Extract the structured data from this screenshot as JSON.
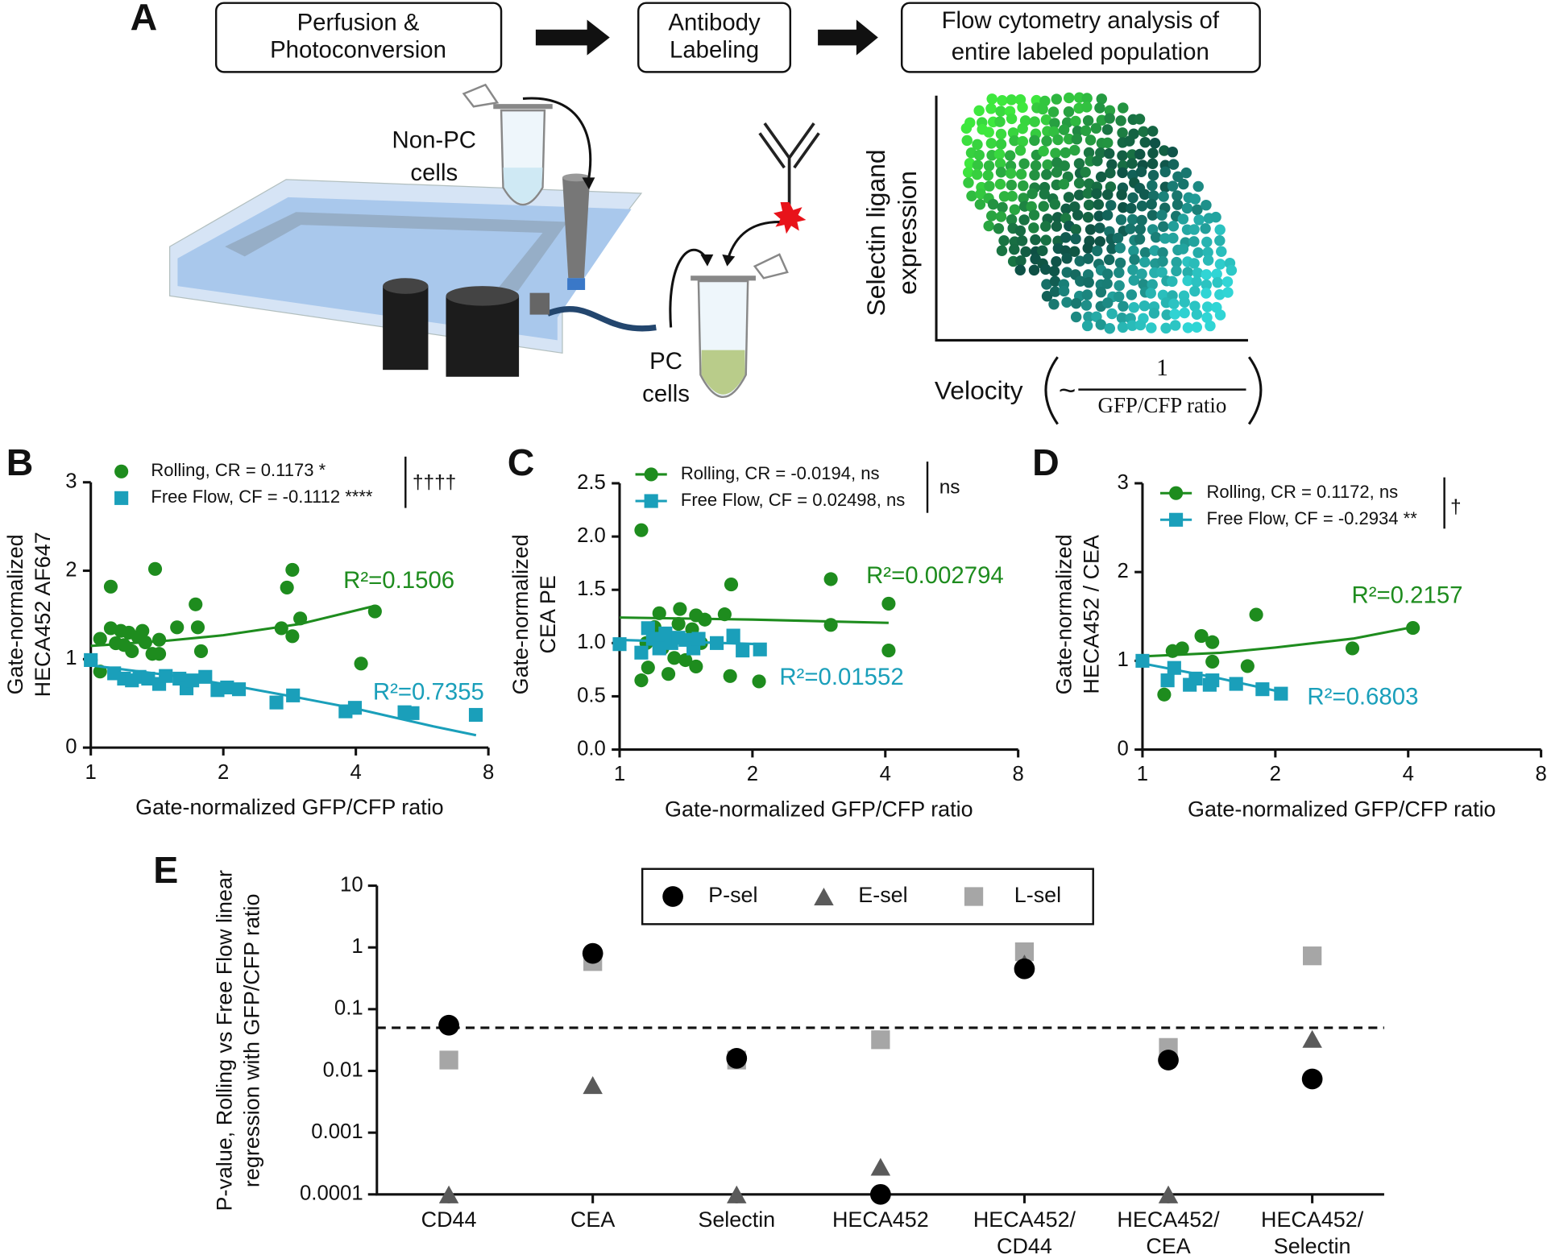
{
  "panel_a": {
    "label": "A",
    "steps": [
      "Perfusion &\nPhotoconversion",
      "Antibody\nLabeling",
      "Flow cytometry analysis of\nentire labeled population"
    ],
    "non_pc": "Non-PC\ncells",
    "pc": "PC\ncells",
    "ylabel": "Selectin ligand\nexpression",
    "xlabel": "Velocity",
    "tilde": "~",
    "numerator": "1",
    "denominator": "GFP/CFP ratio"
  },
  "chart_data": [
    {
      "type": "scatter",
      "panel": "B",
      "xlabel": "Gate-normalized GFP/CFP ratio",
      "ylabel": "Gate-normalized\nHECA452 AF647",
      "log_x": true,
      "xlim": [
        1,
        8
      ],
      "xticks": [
        1,
        2,
        4,
        8
      ],
      "ylim": [
        0,
        3
      ],
      "yticks": [
        0,
        1,
        2,
        3
      ],
      "legend_lines": false,
      "annotation": "††††",
      "series": [
        {
          "name": "Rolling, CR = 0.1173 *",
          "marker": "circle",
          "color": "#1e8c1e",
          "r2_label": "R²=0.1506",
          "x": [
            1,
            1.05,
            1.05,
            1.11,
            1.11,
            1.14,
            1.17,
            1.19,
            1.22,
            1.24,
            1.28,
            1.31,
            1.33,
            1.38,
            1.4,
            1.43,
            1.43,
            1.57,
            1.73,
            1.75,
            1.78,
            2.71,
            2.79,
            2.87,
            2.87,
            2.99,
            4.11,
            4.42
          ],
          "values": [
            0.99,
            1.23,
            0.86,
            1.82,
            1.35,
            1.18,
            1.32,
            1.16,
            1.3,
            1.09,
            1.25,
            1.32,
            1.19,
            1.06,
            2.02,
            1.22,
            1.06,
            1.36,
            1.62,
            1.36,
            1.09,
            1.35,
            1.81,
            2.01,
            1.26,
            1.46,
            0.95,
            1.54
          ],
          "fit": {
            "x": [
              1,
              1.5,
              2,
              3,
              4.4
            ],
            "values": [
              1.15,
              1.21,
              1.27,
              1.4,
              1.6
            ]
          }
        },
        {
          "name": "Free Flow, CF = -0.1112 ****",
          "marker": "square",
          "color": "#1a9fba",
          "r2_label": "R²=0.7355",
          "x": [
            1,
            1.13,
            1.19,
            1.24,
            1.29,
            1.35,
            1.43,
            1.48,
            1.59,
            1.65,
            1.7,
            1.82,
            1.94,
            2.04,
            2.17,
            2.64,
            2.88,
            3.79,
            3.98,
            5.16,
            5.38,
            7.49
          ],
          "values": [
            0.99,
            0.84,
            0.78,
            0.76,
            0.8,
            0.78,
            0.72,
            0.81,
            0.78,
            0.67,
            0.76,
            0.8,
            0.65,
            0.68,
            0.66,
            0.51,
            0.59,
            0.41,
            0.45,
            0.4,
            0.39,
            0.37
          ],
          "fit": {
            "x": [
              1,
              1.5,
              2,
              3,
              4,
              5,
              6,
              7.5
            ],
            "values": [
              0.93,
              0.82,
              0.72,
              0.56,
              0.44,
              0.33,
              0.24,
              0.14
            ]
          }
        }
      ]
    },
    {
      "type": "scatter",
      "panel": "C",
      "xlabel": "Gate-normalized GFP/CFP ratio",
      "ylabel": "Gate-normalized\nCEA PE",
      "log_x": true,
      "xlim": [
        1,
        8
      ],
      "xticks": [
        1,
        2,
        4,
        8
      ],
      "ylim": [
        0,
        2.5
      ],
      "yticks": [
        {
          "value": 0,
          "label": "0.0"
        },
        0.5,
        {
          "value": 1,
          "label": "1.0"
        },
        1.5,
        {
          "value": 2,
          "label": "2.0"
        },
        2.5
      ],
      "legend_lines": true,
      "annotation": "ns",
      "series": [
        {
          "name": "Rolling, CR = -0.0194, ns",
          "marker": "circle",
          "color": "#1e8c1e",
          "r2_label": "R²=0.002794",
          "x": [
            1,
            1.12,
            1.12,
            1.15,
            1.16,
            1.2,
            1.23,
            1.25,
            1.29,
            1.33,
            1.36,
            1.37,
            1.41,
            1.46,
            1.49,
            1.49,
            1.53,
            1.56,
            1.73,
            1.78,
            1.79,
            2.07,
            3.01,
            3.01,
            4.07,
            4.07
          ],
          "values": [
            0.99,
            2.06,
            0.65,
            1,
            0.77,
            1.15,
            1.28,
            0.95,
            0.71,
            0.86,
            1.18,
            1.32,
            0.84,
            1.13,
            0.78,
            1.26,
            1,
            1.22,
            1.27,
            0.69,
            1.55,
            0.64,
            1.6,
            1.17,
            1.37,
            0.93
          ],
          "fit": {
            "x": [
              1,
              2,
              4.07
            ],
            "values": [
              1.24,
              1.22,
              1.19
            ]
          }
        },
        {
          "name": "Free Flow, CF = 0.02498, ns",
          "marker": "square",
          "color": "#1a9fba",
          "r2_label": "R²=0.01552",
          "x": [
            1,
            1.12,
            1.16,
            1.19,
            1.23,
            1.27,
            1.31,
            1.36,
            1.41,
            1.47,
            1.51,
            1.66,
            1.81,
            1.9,
            2.08
          ],
          "values": [
            0.99,
            0.91,
            1.14,
            1.04,
            0.95,
            1.09,
            1,
            1.05,
            1.03,
            0.95,
            1.04,
            1,
            1.07,
            0.93,
            0.94
          ],
          "fit": {
            "x": [
              1,
              2.08
            ],
            "values": [
              1.03,
              0.99
            ]
          }
        }
      ]
    },
    {
      "type": "scatter",
      "panel": "D",
      "xlabel": "Gate-normalized GFP/CFP ratio",
      "ylabel": "Gate-normalized\nHECA452 / CEA",
      "log_x": true,
      "xlim": [
        1,
        8
      ],
      "xticks": [
        1,
        2,
        4,
        8
      ],
      "ylim": [
        0,
        3
      ],
      "yticks": [
        0,
        1,
        2,
        3
      ],
      "legend_lines": true,
      "annotation": "†",
      "series": [
        {
          "name": "Rolling, CR = 0.1172, ns",
          "marker": "circle",
          "color": "#1e8c1e",
          "r2_label": "R²=0.2157",
          "x": [
            1,
            1.12,
            1.17,
            1.23,
            1.36,
            1.44,
            1.44,
            1.73,
            1.81,
            2.99,
            4.1
          ],
          "values": [
            1,
            0.62,
            1.11,
            1.14,
            1.28,
            0.99,
            1.21,
            0.94,
            1.52,
            1.14,
            1.37
          ],
          "fit": {
            "x": [
              1,
              1.5,
              2,
              3,
              4.1
            ],
            "values": [
              1.05,
              1.09,
              1.15,
              1.25,
              1.38
            ]
          }
        },
        {
          "name": "Free Flow, CF = -0.2934 **",
          "marker": "square",
          "color": "#1a9fba",
          "r2_label": "R²=0.6803",
          "x": [
            1,
            1.14,
            1.18,
            1.28,
            1.32,
            1.42,
            1.44,
            1.63,
            1.87,
            2.06
          ],
          "values": [
            1,
            0.78,
            0.92,
            0.73,
            0.8,
            0.73,
            0.78,
            0.74,
            0.68,
            0.63
          ],
          "fit": {
            "x": [
              1,
              1.5,
              2.06
            ],
            "values": [
              0.97,
              0.8,
              0.65
            ]
          }
        }
      ]
    },
    {
      "type": "dot",
      "panel": "E",
      "ylabel": "P-value, Rolling vs Free Flow linear\nregression with GFP/CFP ratio",
      "log_y": true,
      "ylim": [
        0.0001,
        10
      ],
      "yticks": [
        0.0001,
        0.001,
        0.01,
        0.1,
        1,
        10
      ],
      "threshold": 0.05,
      "categories": [
        "CD44",
        "CEA",
        "Selectin",
        "HECA452",
        "HECA452/\nCD44",
        "HECA452/\nCEA",
        "HECA452/\nSelectin"
      ],
      "series": [
        {
          "name": "P-sel",
          "marker": "circle",
          "color": "#000000",
          "values": [
            0.055,
            0.8,
            0.016,
            0.0001,
            0.45,
            0.015,
            0.0074
          ]
        },
        {
          "name": "E-sel",
          "marker": "triangle",
          "color": "#5a5a5a",
          "values": [
            0.0001,
            0.0059,
            0.0001,
            0.00028,
            0.55,
            0.0001,
            0.033
          ]
        },
        {
          "name": "L-sel",
          "marker": "square",
          "color": "#a6a6a6",
          "values": [
            0.015,
            0.59,
            0.015,
            0.032,
            0.85,
            0.024,
            0.73
          ]
        }
      ]
    }
  ]
}
